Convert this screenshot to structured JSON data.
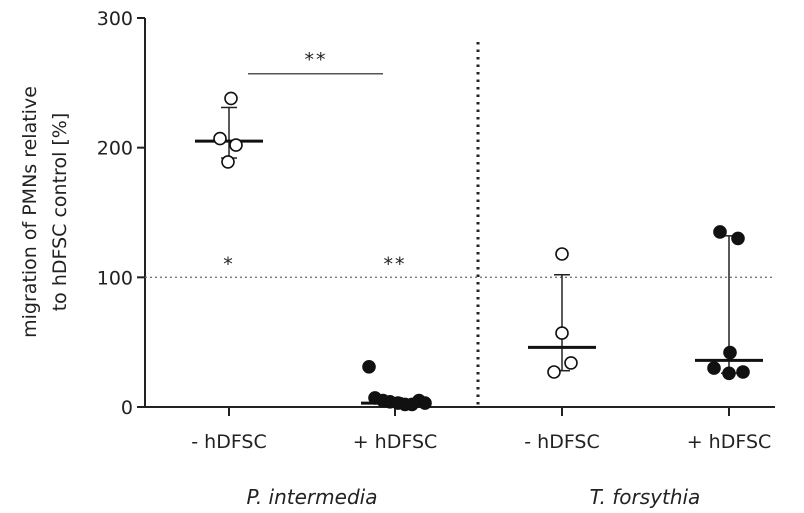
{
  "chart_data": {
    "type": "scatter",
    "title": "",
    "ylabel_line1": "migration of PMNs relative",
    "ylabel_line2": "to hDFSC control [%]",
    "ylim": [
      0,
      300
    ],
    "yticks": [
      0,
      100,
      200,
      300
    ],
    "reference_line": 100,
    "categories": [
      {
        "label": "- hDFSC",
        "group": "P. intermedia",
        "marker": "open",
        "median": 205,
        "error_low": 192,
        "error_high": 231,
        "points": [
          238,
          207,
          202,
          189
        ]
      },
      {
        "label": "+ hDFSC",
        "group": "P. intermedia",
        "marker": "filled",
        "median": 3,
        "error_low": 1,
        "error_high": 7,
        "points": [
          31,
          7,
          5,
          4,
          3,
          2,
          2,
          5,
          3
        ]
      },
      {
        "label": "- hDFSC",
        "group": "T. forsythia",
        "marker": "open",
        "median": 46,
        "error_low": 28,
        "error_high": 102,
        "points": [
          118,
          57,
          34,
          27
        ]
      },
      {
        "label": "+ hDFSC",
        "group": "T. forsythia",
        "marker": "filled",
        "median": 36,
        "error_low": 26,
        "error_high": 132,
        "points": [
          135,
          130,
          42,
          30,
          27,
          26
        ]
      }
    ],
    "groups": [
      "P. intermedia",
      "T. forsythia"
    ],
    "significance": [
      {
        "text": "**",
        "type": "bracket",
        "from": 0,
        "to": 1,
        "y": 267
      },
      {
        "text": "*",
        "type": "label",
        "category": 0,
        "y": 110
      },
      {
        "text": "**",
        "type": "label",
        "category": 1,
        "y": 110
      }
    ],
    "separator": "dotted-vertical-between-groups",
    "grid": false,
    "legend": "none"
  }
}
